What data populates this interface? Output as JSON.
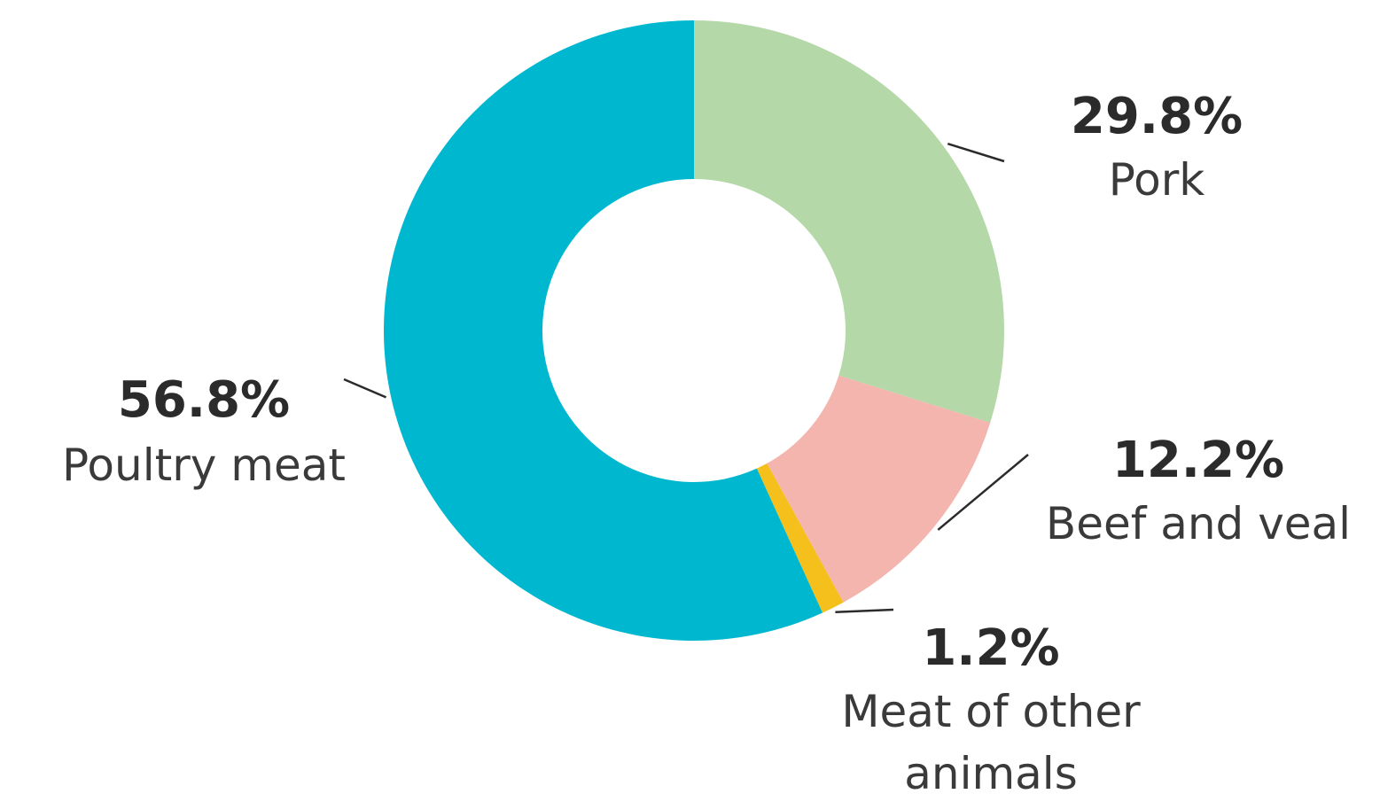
{
  "chart_data": {
    "type": "pie",
    "donut": true,
    "slices": [
      {
        "label": "Pork",
        "value": 29.8,
        "value_label": "29.8%",
        "color": "#b5d8a8"
      },
      {
        "label": "Beef and veal",
        "value": 12.2,
        "value_label": "12.2%",
        "color": "#f3b5ae"
      },
      {
        "label": "Meat of other animals",
        "value": 1.2,
        "value_label": "1.2%",
        "color": "#f5c01c"
      },
      {
        "label": "Poultry meat",
        "value": 56.8,
        "value_label": "56.8%",
        "color": "#00b7d0"
      }
    ],
    "legend": "none"
  }
}
